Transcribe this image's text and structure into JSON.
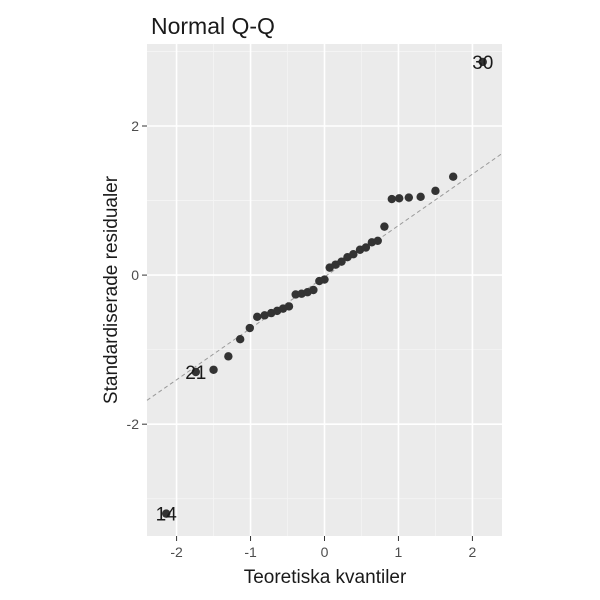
{
  "chart_data": {
    "type": "scatter",
    "title": "Normal Q-Q",
    "xlabel": "Teoretiska kvantiler",
    "ylabel": "Standardiserade residualer",
    "xlim": [
      -2.4,
      2.4
    ],
    "ylim": [
      -3.5,
      3.1
    ],
    "x_ticks": [
      -2,
      -1,
      0,
      1,
      2
    ],
    "x_tick_labels": [
      "-2",
      "-1",
      "0",
      "1",
      "2"
    ],
    "y_ticks": [
      -2,
      0,
      2
    ],
    "y_tick_labels": [
      "-2",
      "0",
      "2"
    ],
    "grid": true,
    "legend": "none",
    "colors": {
      "panel": "#ebebeb",
      "grid_major": "#ffffff",
      "grid_minor": "#f5f5f5",
      "points": "#333333",
      "reference_line": "#9a9a9a",
      "text": "#1a1a1a",
      "ticks": "#4d4d4d"
    },
    "reference_line": {
      "x": [
        -2.4,
        2.4
      ],
      "y": [
        -1.68,
        1.63
      ]
    },
    "points": [
      {
        "x": -2.14,
        "y": -3.2
      },
      {
        "x": -1.74,
        "y": -1.3
      },
      {
        "x": -1.5,
        "y": -1.27
      },
      {
        "x": -1.3,
        "y": -1.09
      },
      {
        "x": -1.14,
        "y": -0.86
      },
      {
        "x": -1.01,
        "y": -0.71
      },
      {
        "x": -0.91,
        "y": -0.56
      },
      {
        "x": -0.81,
        "y": -0.54
      },
      {
        "x": -0.72,
        "y": -0.51
      },
      {
        "x": -0.64,
        "y": -0.48
      },
      {
        "x": -0.56,
        "y": -0.45
      },
      {
        "x": -0.48,
        "y": -0.42
      },
      {
        "x": -0.39,
        "y": -0.26
      },
      {
        "x": -0.31,
        "y": -0.25
      },
      {
        "x": -0.23,
        "y": -0.23
      },
      {
        "x": -0.15,
        "y": -0.2
      },
      {
        "x": -0.07,
        "y": -0.08
      },
      {
        "x": 0.0,
        "y": -0.06
      },
      {
        "x": 0.07,
        "y": 0.1
      },
      {
        "x": 0.15,
        "y": 0.14
      },
      {
        "x": 0.23,
        "y": 0.18
      },
      {
        "x": 0.31,
        "y": 0.24
      },
      {
        "x": 0.39,
        "y": 0.28
      },
      {
        "x": 0.48,
        "y": 0.34
      },
      {
        "x": 0.56,
        "y": 0.37
      },
      {
        "x": 0.64,
        "y": 0.44
      },
      {
        "x": 0.72,
        "y": 0.46
      },
      {
        "x": 0.81,
        "y": 0.65
      },
      {
        "x": 0.91,
        "y": 1.02
      },
      {
        "x": 1.01,
        "y": 1.03
      },
      {
        "x": 1.14,
        "y": 1.04
      },
      {
        "x": 1.3,
        "y": 1.05
      },
      {
        "x": 1.5,
        "y": 1.13
      },
      {
        "x": 1.74,
        "y": 1.32
      },
      {
        "x": 2.14,
        "y": 2.86
      }
    ],
    "point_labels": [
      {
        "text": "30",
        "x": 2.14,
        "y": 2.86
      },
      {
        "text": "21",
        "x": -1.74,
        "y": -1.3
      },
      {
        "text": "14",
        "x": -2.14,
        "y": -3.2
      }
    ]
  }
}
